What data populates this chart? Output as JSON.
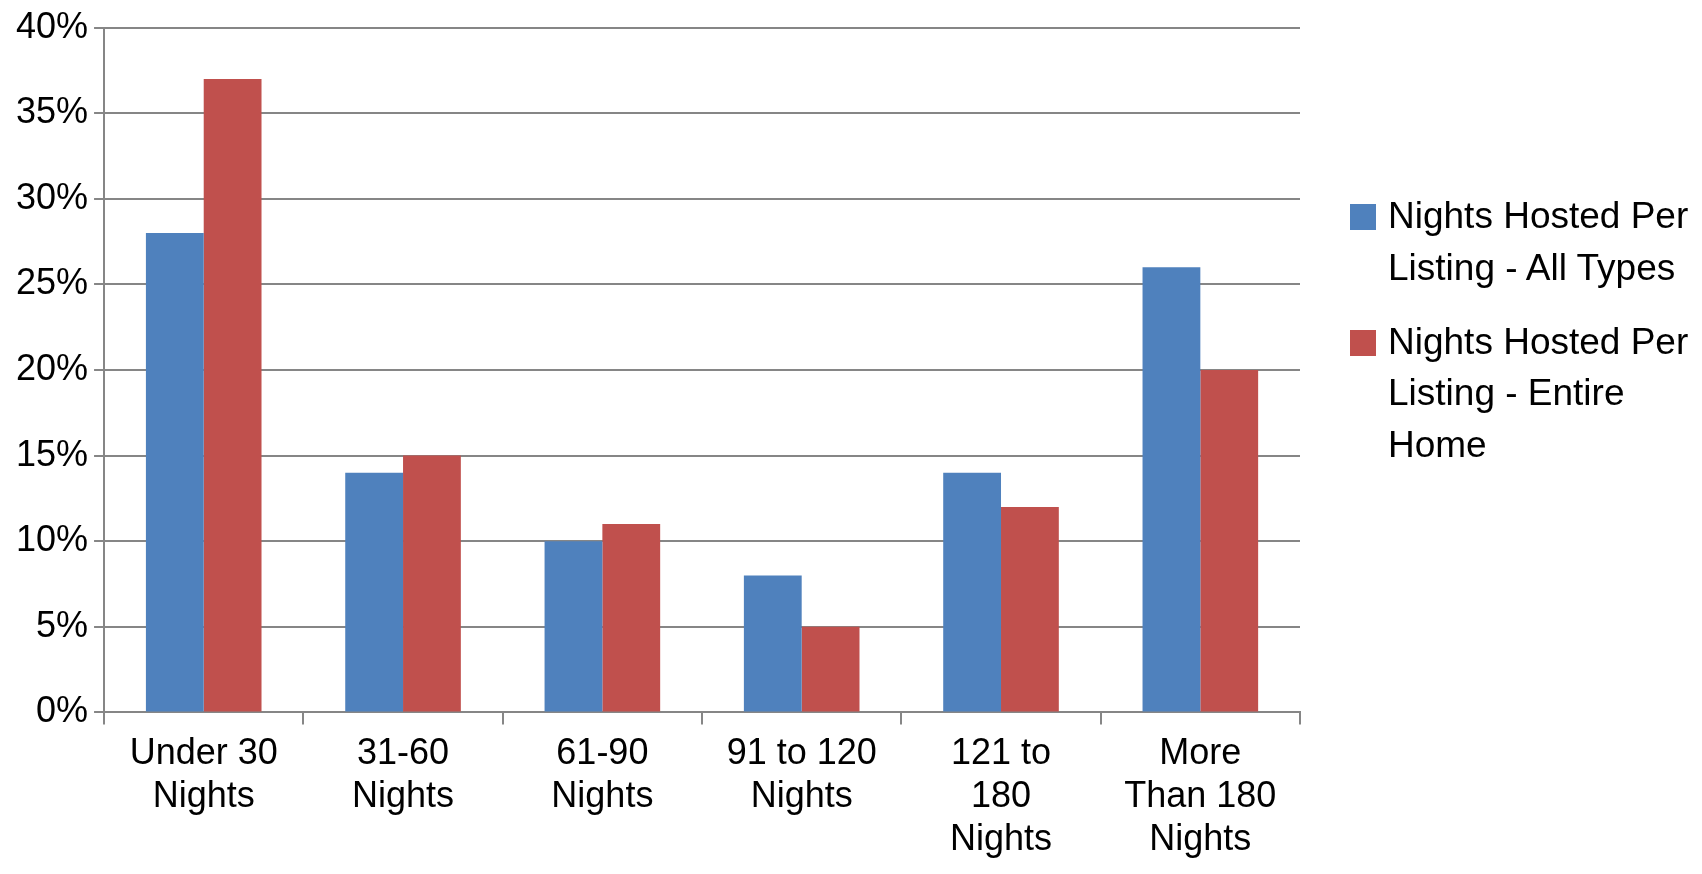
{
  "chart_data": {
    "type": "bar",
    "categories": [
      "Under 30 Nights",
      "31-60 Nights",
      "61-90 Nights",
      "91 to 120 Nights",
      "121 to 180 Nights",
      "More Than 180 Nights"
    ],
    "series": [
      {
        "name": "Nights Hosted Per Listing - All Types",
        "color": "#4f81bd",
        "values": [
          28,
          14,
          10,
          8,
          14,
          26
        ]
      },
      {
        "name": "Nights Hosted Per Listing - Entire Home",
        "color": "#c0504d",
        "values": [
          37,
          15,
          11,
          5,
          12,
          20
        ]
      }
    ],
    "ylim": [
      0,
      40
    ],
    "yticks": [
      {
        "value": 0,
        "label": "0%"
      },
      {
        "value": 5,
        "label": "5%"
      },
      {
        "value": 10,
        "label": "10%"
      },
      {
        "value": 15,
        "label": "15%"
      },
      {
        "value": 20,
        "label": "20%"
      },
      {
        "value": 25,
        "label": "25%"
      },
      {
        "value": 30,
        "label": "30%"
      },
      {
        "value": 35,
        "label": "35%"
      },
      {
        "value": 40,
        "label": "40%"
      }
    ],
    "grid": "y",
    "legend": "right"
  }
}
